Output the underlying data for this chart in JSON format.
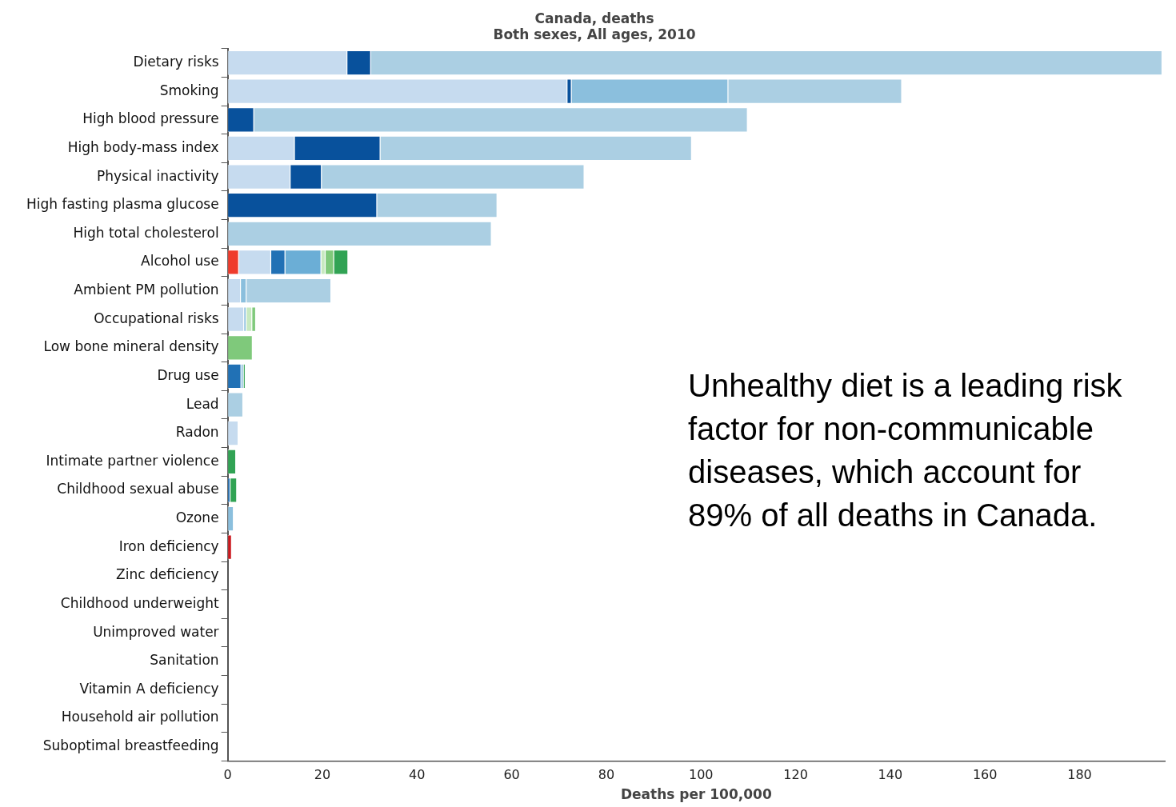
{
  "chart_data": {
    "type": "bar",
    "orientation": "horizontal",
    "stacked": true,
    "title": "Canada, deaths",
    "subtitle": "Both sexes, All ages, 2010",
    "xlabel": "Deaths per 100,000",
    "categories": [
      "Dietary risks",
      "Smoking",
      "High blood pressure",
      "High body-mass index",
      "Physical inactivity",
      "High fasting plasma glucose",
      "High total cholesterol",
      "Alcohol use",
      "Ambient PM pollution",
      "Occupational risks",
      "Low bone mineral density",
      "Drug use",
      "Lead",
      "Radon",
      "Intimate partner violence",
      "Childhood sexual abuse",
      "Ozone",
      "Iron deficiency",
      "Zinc deficiency",
      "Childhood underweight",
      "Unimproved water",
      "Sanitation",
      "Vitamin A deficiency",
      "Household air pollution",
      "Suboptimal breastfeeding"
    ],
    "series": [
      {
        "color": "#ef3b2c",
        "values": [
          null,
          null,
          null,
          null,
          null,
          null,
          null,
          2.3,
          null,
          null,
          null,
          null,
          null,
          null,
          null,
          null,
          null,
          null,
          null,
          null,
          null,
          null,
          null,
          null,
          null
        ]
      },
      {
        "color": "#cb181d",
        "values": [
          null,
          null,
          null,
          null,
          null,
          null,
          null,
          null,
          null,
          null,
          null,
          null,
          null,
          null,
          null,
          null,
          null,
          0.8,
          null,
          null,
          null,
          null,
          null,
          null,
          null
        ]
      },
      {
        "color": "#c6dbef",
        "values": [
          25.2,
          71.7,
          null,
          14.1,
          13.2,
          null,
          null,
          6.8,
          2.7,
          3.4,
          null,
          null,
          null,
          2.2,
          null,
          null,
          null,
          null,
          null,
          null,
          null,
          null,
          null,
          null,
          null
        ]
      },
      {
        "color": "#08519c",
        "values": [
          5.0,
          0.9,
          5.5,
          18.1,
          6.6,
          31.5,
          null,
          null,
          null,
          null,
          null,
          null,
          null,
          null,
          null,
          null,
          null,
          null,
          null,
          null,
          null,
          null,
          null,
          null,
          null
        ]
      },
      {
        "color": "#2171b5",
        "values": [
          null,
          null,
          null,
          null,
          null,
          null,
          null,
          3.0,
          null,
          null,
          null,
          2.8,
          null,
          null,
          null,
          0.5,
          null,
          null,
          null,
          null,
          null,
          null,
          null,
          null,
          null
        ]
      },
      {
        "color": "#6baed6",
        "values": [
          null,
          null,
          null,
          null,
          null,
          null,
          null,
          7.6,
          null,
          null,
          null,
          null,
          null,
          null,
          null,
          null,
          null,
          null,
          null,
          null,
          null,
          null,
          null,
          null,
          null
        ]
      },
      {
        "color": "#8bbfdd",
        "values": [
          null,
          33.1,
          null,
          null,
          null,
          null,
          null,
          null,
          1.2,
          0.5,
          null,
          0.5,
          null,
          null,
          null,
          null,
          1.2,
          null,
          null,
          null,
          null,
          null,
          null,
          null,
          null
        ]
      },
      {
        "color": "#abcfe3",
        "values": [
          167.2,
          36.7,
          104.3,
          65.8,
          55.5,
          25.4,
          55.7,
          null,
          17.9,
          null,
          null,
          null,
          3.2,
          null,
          null,
          null,
          null,
          null,
          null,
          null,
          null,
          null,
          null,
          null,
          null
        ]
      },
      {
        "color": "#c7e9c0",
        "values": [
          null,
          null,
          null,
          null,
          null,
          null,
          null,
          0.9,
          null,
          1.2,
          null,
          null,
          null,
          null,
          null,
          null,
          null,
          null,
          null,
          null,
          null,
          null,
          null,
          null,
          null
        ]
      },
      {
        "color": "#7fc97b",
        "values": [
          null,
          null,
          null,
          null,
          null,
          null,
          null,
          1.8,
          null,
          0.8,
          5.2,
          null,
          null,
          null,
          null,
          null,
          null,
          null,
          null,
          null,
          null,
          null,
          null,
          null,
          null
        ]
      },
      {
        "color": "#31a354",
        "values": [
          null,
          null,
          null,
          null,
          null,
          null,
          null,
          3.0,
          null,
          null,
          null,
          0.4,
          null,
          null,
          1.7,
          1.4,
          null,
          null,
          null,
          null,
          null,
          null,
          null,
          null,
          null
        ]
      }
    ],
    "xlim": [
      0,
      198
    ],
    "xticks": [
      0,
      20,
      40,
      60,
      80,
      100,
      120,
      140,
      160,
      180
    ],
    "grid": false,
    "legend": false,
    "annotations": [
      "Unhealthy diet is a leading risk factor for non-communicable diseases, which account for 89% of all deaths in Canada."
    ]
  }
}
